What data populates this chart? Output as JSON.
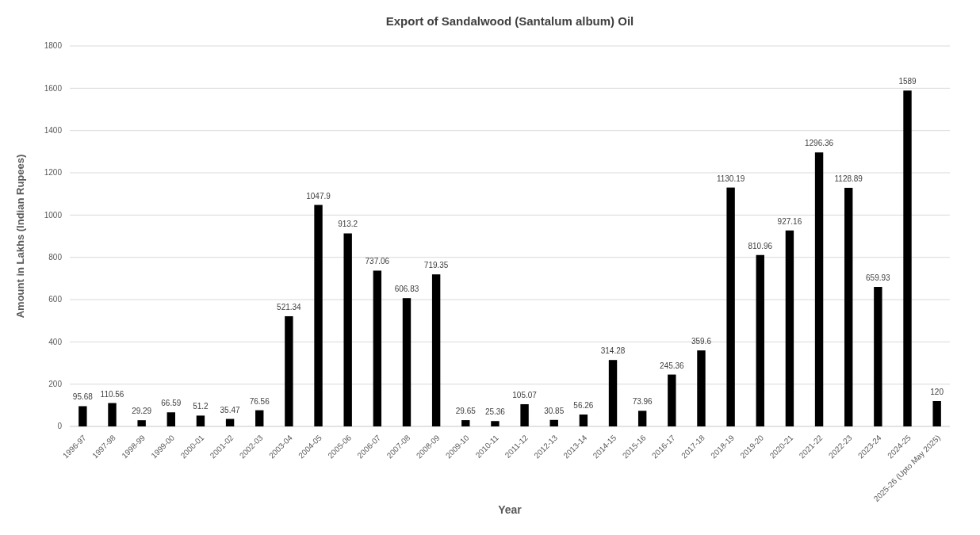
{
  "chart_data": {
    "type": "bar",
    "title": "Export of Sandalwood (Santalum album) Oil",
    "xlabel": "Year",
    "ylabel": "Amount in Lakhs (Indian Rupees)",
    "categories": [
      "1996-97",
      "1997-98",
      "1998-99",
      "1999-00",
      "2000-01",
      "2001-02",
      "2002-03",
      "2003-04",
      "2004-05",
      "2005-06",
      "2006-07",
      "2007-08",
      "2008-09",
      "2009-10",
      "2010-11",
      "2011-12",
      "2012-13",
      "2013-14",
      "2014-15",
      "2015-16",
      "2016-17",
      "2017-18",
      "2018-19",
      "2019-20",
      "2020-21",
      "2021-22",
      "2022-23",
      "2023-24",
      "2024-25",
      "2025-26 (Upto May 2025)"
    ],
    "values": [
      95.68,
      110.56,
      29.29,
      66.59,
      51.2,
      35.47,
      76.56,
      521.34,
      1047.9,
      913.2,
      737.06,
      606.83,
      719.35,
      29.65,
      25.36,
      105.07,
      30.85,
      56.26,
      314.28,
      73.96,
      245.36,
      359.6,
      1130.19,
      810.96,
      927.16,
      1296.36,
      1128.89,
      659.93,
      1589,
      120
    ],
    "color": "#000000",
    "data_labels": true,
    "grid": "y",
    "ylim": [
      0,
      1800
    ],
    "yticks": [
      0,
      200,
      400,
      600,
      800,
      1000,
      1200,
      1400,
      1600,
      1800
    ]
  }
}
